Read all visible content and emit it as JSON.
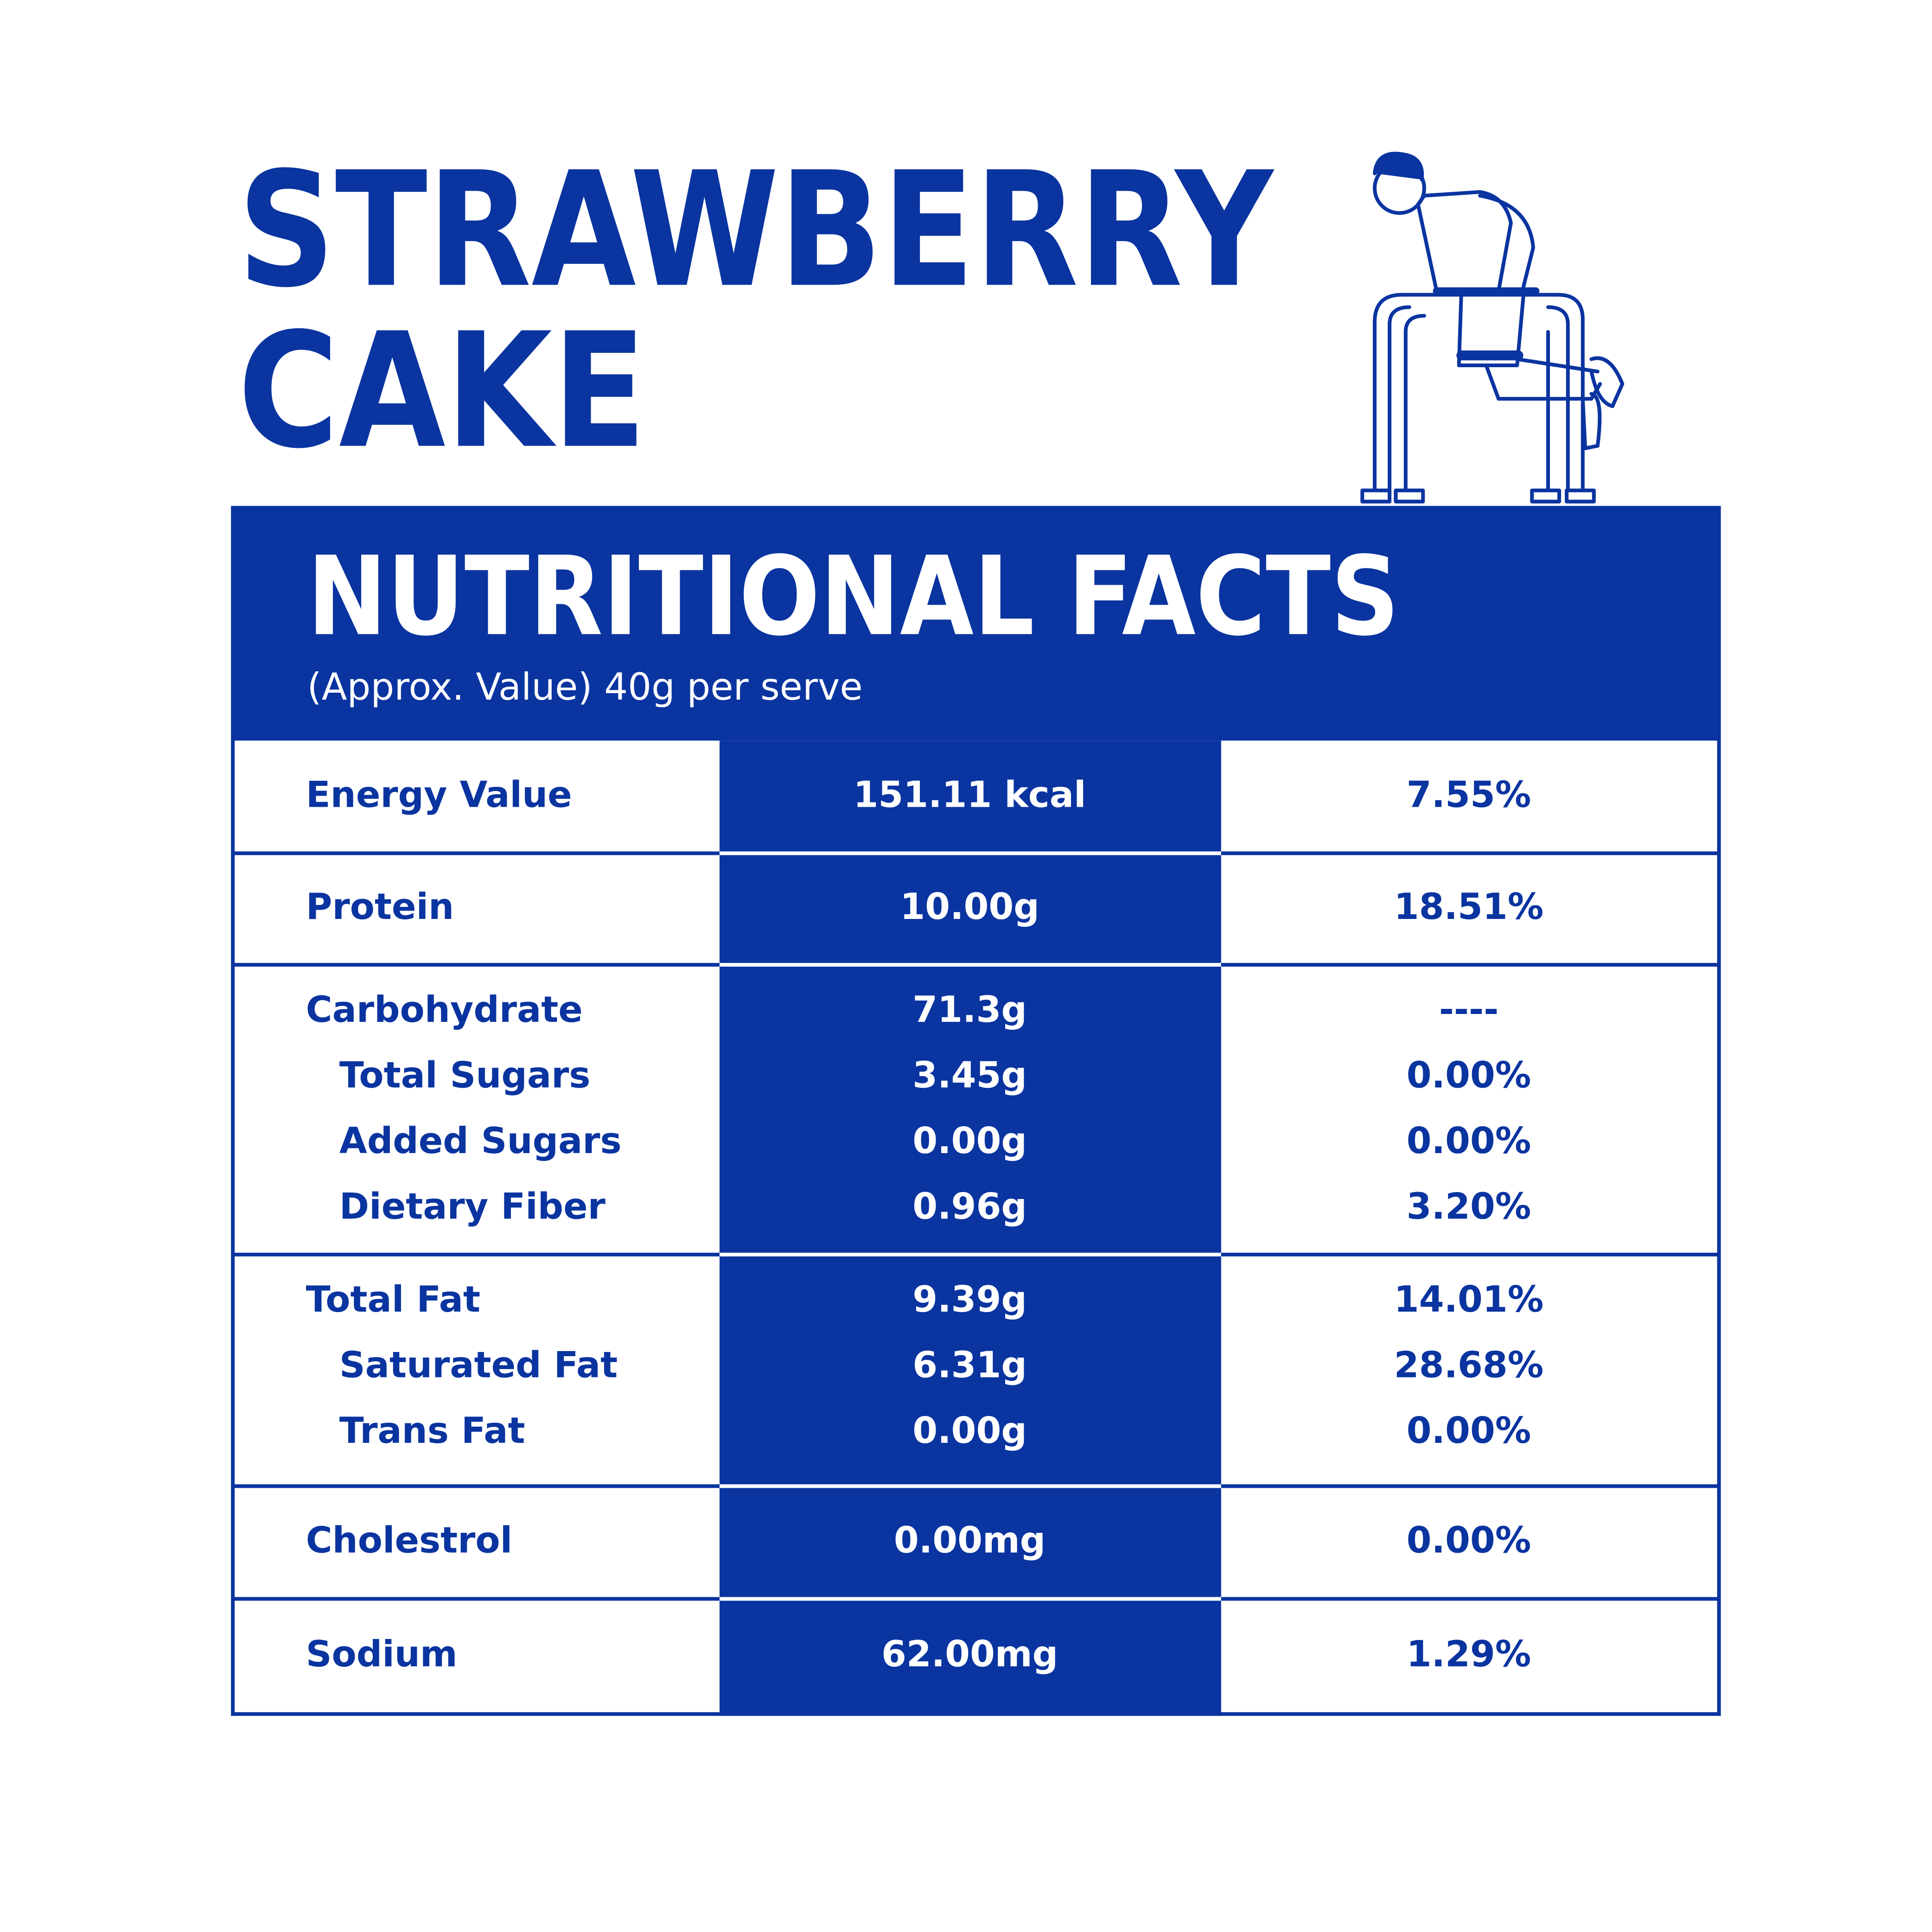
{
  "header": {
    "title_lines": [
      "STRAWBERRY",
      "CAKE"
    ],
    "heading": "NUTRITIONAL FACTS",
    "subheading": "(Approx. Value) 40g per serve"
  },
  "table": {
    "groups": [
      {
        "main": {
          "name": "Energy Value",
          "amount": "151.11 kcal",
          "daily": "7.55%"
        },
        "sub": []
      },
      {
        "main": {
          "name": "Protein",
          "amount": "10.00g",
          "daily": "18.51%"
        },
        "sub": []
      },
      {
        "main": {
          "name": "Carbohydrate",
          "amount": "71.3g",
          "daily": "----"
        },
        "sub": [
          {
            "name": "Total Sugars",
            "amount": "3.45g",
            "daily": "0.00%"
          },
          {
            "name": "Added Sugars",
            "amount": "0.00g",
            "daily": "0.00%"
          },
          {
            "name": "Dietary Fiber",
            "amount": "0.96g",
            "daily": "3.20%"
          }
        ]
      },
      {
        "main": {
          "name": "Total Fat",
          "amount": "9.39g",
          "daily": "14.01%"
        },
        "sub": [
          {
            "name": "Saturated Fat",
            "amount": "6.31g",
            "daily": "28.68%"
          },
          {
            "name": "Trans Fat",
            "amount": "0.00g",
            "daily": "0.00%"
          }
        ]
      },
      {
        "main": {
          "name": "Cholestrol",
          "amount": "0.00mg",
          "daily": "0.00%"
        },
        "sub": []
      },
      {
        "main": {
          "name": "Sodium",
          "amount": "62.00mg",
          "daily": "1.29%"
        },
        "sub": []
      }
    ]
  }
}
